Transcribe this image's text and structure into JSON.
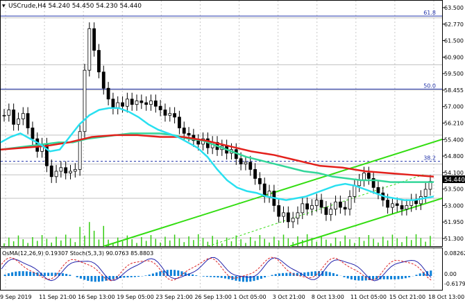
{
  "header": {
    "symbol_line": "USCrude,H4 54.240 54.450 54.230 54.440",
    "menu_glyph": "▾"
  },
  "fib_labels": [
    {
      "text": "61.8",
      "price": 63.6
    },
    {
      "text": "50.0",
      "price": 59.55
    },
    {
      "text": "38.2",
      "price": 55.55
    }
  ],
  "level_lines": [
    63.5,
    60.9,
    59.5,
    57.0,
    55.4,
    54.8,
    53.5,
    51.3
  ],
  "price_axis": {
    "ticks": [
      "63.500",
      "62.770",
      "61.500",
      "60.900",
      "59.500",
      "58.455",
      "57.000",
      "56.210",
      "55.400",
      "54.800",
      "54.100",
      "53.500",
      "53.000",
      "51.950",
      "51.300"
    ],
    "current_label": "54.440",
    "current_price": 54.44
  },
  "time_axis": {
    "ticks": [
      "9 Sep 2019",
      "11 Sep 21:00",
      "16 Sep 13:00",
      "19 Sep 05:00",
      "23 Sep 21:00",
      "26 Sep 13:00",
      "1 Oct 05:00",
      "3 Oct 21:00",
      "8 Oct 13:00",
      "11 Oct 05:00",
      "15 Oct 21:00",
      "18 Oct 13:00"
    ]
  },
  "indicator_panel": {
    "label": "OsMA(12,26,9) 0.19307  Stoch(5,3,3) 90.0763 85.8803",
    "ticks": [
      "0.08262",
      "0.00",
      "-0.61795"
    ]
  },
  "colors": {
    "background": "#ffffff",
    "grid": "#c8c8c8",
    "bull_candle": "#ffffff",
    "bear_candle": "#000000",
    "ema_fast": "#29e0f0",
    "ema_mid": "#33d69a",
    "ema_slow": "#e3201b",
    "channel": "#33dd11",
    "fib_line": "#2233aa",
    "level_line": "#c0c0c0",
    "volume": "#33cc11",
    "osma": "#0a7fd8",
    "stoch_main": "#2222aa",
    "stoch_signal": "#dd2222",
    "axis_label_box": "#c0c0c0"
  },
  "chart_data": {
    "type": "line",
    "price_range": [
      50.85,
      64.45
    ],
    "candles": [
      58.1,
      58.4,
      57.6,
      57.9,
      58.2,
      57.4,
      56.8,
      56.1,
      56.5,
      55.3,
      54.7,
      55.0,
      55.2,
      54.9,
      55.0,
      55.1,
      57.2,
      60.6,
      62.9,
      61.7,
      60.5,
      59.6,
      59.0,
      58.5,
      58.8,
      58.6,
      59.0,
      58.7,
      58.9,
      58.8,
      58.7,
      58.9,
      58.6,
      58.4,
      58.1,
      58.2,
      58.0,
      57.4,
      57.1,
      57.0,
      56.7,
      56.5,
      56.8,
      56.3,
      56.6,
      56.2,
      56.4,
      56.0,
      56.2,
      55.7,
      55.4,
      55.5,
      55.1,
      54.6,
      54.3,
      53.6,
      53.9,
      53.1,
      52.5,
      52.7,
      52.2,
      52.4,
      52.7,
      53.2,
      52.9,
      53.1,
      53.4,
      53.0,
      52.6,
      52.9,
      53.3,
      53.0,
      52.9,
      53.6,
      54.2,
      54.5,
      54.9,
      54.6,
      54.1,
      53.8,
      53.4,
      53.0,
      53.2,
      53.1,
      52.9,
      53.1,
      53.4,
      53.2,
      53.6,
      54.0,
      54.44
    ],
    "ema_fast": [
      56.6,
      56.9,
      57.1,
      56.8,
      56.5,
      56.1,
      56.2,
      56.9,
      57.6,
      58.1,
      58.4,
      58.5,
      58.5,
      58.3,
      58.0,
      57.6,
      57.3,
      57.1,
      56.9,
      56.6,
      56.3,
      55.8,
      55.1,
      54.5,
      54.1,
      53.9,
      53.8,
      53.6,
      53.5,
      53.4,
      53.5,
      53.6,
      53.8,
      54.0,
      54.2,
      54.3,
      54.2,
      54.0,
      53.8,
      53.6,
      53.5,
      53.4,
      53.4,
      53.5,
      53.6
    ],
    "ema_mid": [
      56.2,
      56.3,
      56.4,
      56.5,
      56.6,
      56.6,
      56.8,
      56.9,
      57.0,
      57.1,
      57.1,
      57.1,
      57.0,
      56.8,
      56.7,
      56.4,
      56.1,
      55.8,
      55.6,
      55.4,
      55.2,
      55.0,
      54.9,
      54.7,
      54.6,
      54.5,
      54.5,
      54.4,
      54.4,
      54.4,
      54.4
    ],
    "ema_slow": [
      56.2,
      56.3,
      56.4,
      56.6,
      56.9,
      57.0,
      57.0,
      56.9,
      56.9,
      56.7,
      56.4,
      56.1,
      55.9,
      55.6,
      55.3,
      55.2,
      55.0,
      54.9,
      54.8,
      54.7
    ],
    "channel": {
      "upper": [
        [
          8,
          1.0
        ],
        [
          666,
          1.0
        ]
      ],
      "lower": [
        [
          8,
          1.0
        ],
        [
          666,
          1.0
        ]
      ]
    }
  }
}
